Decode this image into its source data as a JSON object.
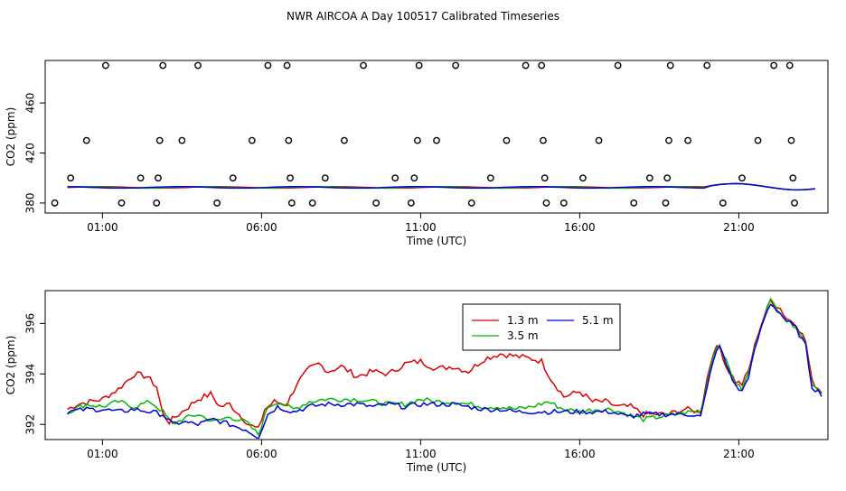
{
  "title": "NWR AIRCOA A  Day 100517  Calibrated Timeseries",
  "chart_data": [
    {
      "type": "scatter",
      "id": "top",
      "xlabel": "Time (UTC)",
      "ylabel": "CO2 (ppm)",
      "xlim": [
        -0.8,
        23.8
      ],
      "ylim": [
        372,
        494
      ],
      "xticks": [
        1,
        6,
        11,
        16,
        21
      ],
      "xtick_labels": [
        "01:00",
        "06:00",
        "11:00",
        "16:00",
        "21:00"
      ],
      "yticks": [
        380,
        420,
        460
      ],
      "ytick_labels": [
        "380",
        "420",
        "460"
      ],
      "markers": [
        [
          -0.5,
          380
        ],
        [
          0,
          400
        ],
        [
          0.5,
          430
        ],
        [
          1.1,
          490
        ],
        [
          1.6,
          380
        ],
        [
          2.2,
          400
        ],
        [
          2.7,
          380
        ],
        [
          2.75,
          400
        ],
        [
          2.8,
          430
        ],
        [
          2.9,
          490
        ],
        [
          3.5,
          430
        ],
        [
          4.0,
          490
        ],
        [
          4.6,
          380
        ],
        [
          5.1,
          400
        ],
        [
          5.7,
          430
        ],
        [
          6.2,
          490
        ],
        [
          6.8,
          490
        ],
        [
          6.85,
          430
        ],
        [
          6.9,
          400
        ],
        [
          6.95,
          380
        ],
        [
          7.6,
          380
        ],
        [
          8.0,
          400
        ],
        [
          8.6,
          430
        ],
        [
          9.2,
          490
        ],
        [
          9.6,
          380
        ],
        [
          10.2,
          400
        ],
        [
          10.7,
          380
        ],
        [
          10.8,
          400
        ],
        [
          10.9,
          430
        ],
        [
          10.95,
          490
        ],
        [
          11.5,
          430
        ],
        [
          12.1,
          490
        ],
        [
          12.6,
          380
        ],
        [
          13.2,
          400
        ],
        [
          13.7,
          430
        ],
        [
          14.3,
          490
        ],
        [
          14.8,
          490
        ],
        [
          14.85,
          430
        ],
        [
          14.9,
          400
        ],
        [
          14.95,
          380
        ],
        [
          15.5,
          380
        ],
        [
          16.1,
          400
        ],
        [
          16.6,
          430
        ],
        [
          17.2,
          490
        ],
        [
          17.7,
          380
        ],
        [
          18.2,
          400
        ],
        [
          18.7,
          380
        ],
        [
          18.75,
          400
        ],
        [
          18.8,
          430
        ],
        [
          18.85,
          490
        ],
        [
          19.4,
          430
        ],
        [
          20.0,
          490
        ],
        [
          20.5,
          380
        ],
        [
          21.1,
          400
        ],
        [
          21.6,
          430
        ],
        [
          22.1,
          490
        ],
        [
          22.6,
          490
        ],
        [
          22.65,
          430
        ],
        [
          22.7,
          400
        ],
        [
          22.75,
          380
        ]
      ],
      "series": [
        {
          "name": "1.3 m",
          "color": "#dd0000"
        },
        {
          "name": "3.5 m",
          "color": "#00bb00"
        },
        {
          "name": "5.1 m",
          "color": "#0000dd"
        }
      ]
    },
    {
      "type": "line",
      "id": "bottom",
      "xlabel": "Time (UTC)",
      "ylabel": "CO2 (ppm)",
      "xlim": [
        -0.8,
        23.8
      ],
      "ylim": [
        391.4,
        397.3
      ],
      "xticks": [
        1,
        6,
        11,
        16,
        21
      ],
      "xtick_labels": [
        "01:00",
        "06:00",
        "11:00",
        "16:00",
        "21:00"
      ],
      "yticks": [
        392,
        394,
        396
      ],
      "ytick_labels": [
        "392",
        "394",
        "396"
      ],
      "x_start": -0.1,
      "x_step": 0.1,
      "series": [
        {
          "name": "1.3 m",
          "color": "#dd0000",
          "anchors": [
            [
              -0.1,
              392.6
            ],
            [
              0.2,
              392.8
            ],
            [
              0.6,
              392.9
            ],
            [
              1.0,
              393.0
            ],
            [
              1.5,
              393.4
            ],
            [
              2.0,
              394.0
            ],
            [
              2.4,
              393.9
            ],
            [
              2.7,
              393.5
            ],
            [
              2.9,
              392.4
            ],
            [
              3.1,
              392.1
            ],
            [
              3.5,
              392.5
            ],
            [
              4.0,
              393.0
            ],
            [
              4.4,
              393.2
            ],
            [
              4.7,
              392.7
            ],
            [
              5.0,
              392.8
            ],
            [
              5.3,
              392.4
            ],
            [
              5.6,
              392.0
            ],
            [
              5.9,
              391.8
            ],
            [
              6.1,
              392.6
            ],
            [
              6.4,
              392.9
            ],
            [
              6.8,
              392.8
            ],
            [
              7.1,
              393.6
            ],
            [
              7.5,
              394.2
            ],
            [
              7.8,
              394.4
            ],
            [
              8.1,
              394.1
            ],
            [
              8.5,
              394.3
            ],
            [
              9.0,
              393.9
            ],
            [
              9.5,
              394.1
            ],
            [
              10.0,
              394.0
            ],
            [
              10.5,
              394.4
            ],
            [
              11.0,
              394.5
            ],
            [
              11.5,
              394.2
            ],
            [
              12.0,
              394.3
            ],
            [
              12.5,
              394.1
            ],
            [
              13.0,
              394.6
            ],
            [
              13.5,
              394.8
            ],
            [
              14.0,
              394.7
            ],
            [
              14.5,
              394.6
            ],
            [
              14.8,
              394.5
            ],
            [
              15.1,
              393.8
            ],
            [
              15.5,
              393.1
            ],
            [
              16.0,
              393.3
            ],
            [
              16.4,
              392.9
            ],
            [
              16.8,
              392.9
            ],
            [
              17.2,
              392.7
            ],
            [
              17.6,
              392.7
            ],
            [
              18.0,
              392.4
            ],
            [
              18.4,
              392.4
            ],
            [
              18.8,
              392.4
            ],
            [
              19.3,
              392.6
            ],
            [
              19.8,
              392.5
            ],
            [
              20.0,
              393.8
            ],
            [
              20.2,
              394.9
            ],
            [
              20.4,
              395.1
            ],
            [
              20.6,
              394.3
            ],
            [
              20.9,
              393.7
            ],
            [
              21.1,
              393.6
            ],
            [
              21.3,
              394.1
            ],
            [
              21.6,
              395.6
            ],
            [
              21.8,
              396.3
            ],
            [
              22.0,
              396.9
            ],
            [
              22.3,
              396.6
            ],
            [
              22.5,
              396.2
            ],
            [
              22.8,
              396.0
            ],
            [
              23.1,
              395.3
            ],
            [
              23.3,
              393.7
            ],
            [
              23.6,
              393.3
            ]
          ],
          "noise": 0.12
        },
        {
          "name": "3.5 m",
          "color": "#00bb00",
          "anchors": [
            [
              -0.1,
              392.5
            ],
            [
              0.5,
              392.8
            ],
            [
              1.0,
              392.7
            ],
            [
              1.5,
              392.9
            ],
            [
              2.0,
              392.7
            ],
            [
              2.5,
              392.9
            ],
            [
              2.9,
              392.5
            ],
            [
              3.2,
              392.0
            ],
            [
              3.5,
              392.2
            ],
            [
              4.0,
              392.4
            ],
            [
              4.5,
              392.1
            ],
            [
              5.0,
              392.3
            ],
            [
              5.5,
              392.1
            ],
            [
              5.9,
              391.6
            ],
            [
              6.2,
              392.7
            ],
            [
              6.5,
              392.9
            ],
            [
              7.0,
              392.6
            ],
            [
              7.5,
              392.9
            ],
            [
              8.0,
              393.0
            ],
            [
              8.5,
              393.0
            ],
            [
              9.0,
              393.0
            ],
            [
              9.5,
              392.9
            ],
            [
              10.0,
              392.8
            ],
            [
              10.5,
              392.8
            ],
            [
              11.0,
              393.0
            ],
            [
              11.5,
              392.9
            ],
            [
              12.0,
              392.9
            ],
            [
              12.5,
              392.8
            ],
            [
              13.0,
              392.7
            ],
            [
              13.5,
              392.7
            ],
            [
              14.0,
              392.6
            ],
            [
              14.5,
              392.7
            ],
            [
              15.0,
              392.9
            ],
            [
              15.5,
              392.6
            ],
            [
              16.0,
              392.5
            ],
            [
              16.5,
              392.6
            ],
            [
              17.0,
              392.6
            ],
            [
              17.5,
              392.4
            ],
            [
              18.0,
              392.2
            ],
            [
              18.5,
              392.3
            ],
            [
              19.0,
              392.4
            ],
            [
              19.5,
              392.5
            ],
            [
              19.8,
              392.5
            ],
            [
              20.0,
              393.6
            ],
            [
              20.2,
              394.8
            ],
            [
              20.4,
              395.2
            ],
            [
              20.6,
              394.5
            ],
            [
              20.9,
              393.6
            ],
            [
              21.1,
              393.4
            ],
            [
              21.3,
              394.0
            ],
            [
              21.6,
              395.5
            ],
            [
              21.8,
              396.3
            ],
            [
              22.0,
              396.9
            ],
            [
              22.3,
              396.5
            ],
            [
              22.5,
              396.1
            ],
            [
              22.8,
              395.9
            ],
            [
              23.1,
              395.2
            ],
            [
              23.3,
              393.6
            ],
            [
              23.6,
              393.3
            ]
          ],
          "noise": 0.1
        },
        {
          "name": "5.1 m",
          "color": "#0000dd",
          "anchors": [
            [
              -0.1,
              392.5
            ],
            [
              0.5,
              392.6
            ],
            [
              1.0,
              392.6
            ],
            [
              1.5,
              392.5
            ],
            [
              2.0,
              392.6
            ],
            [
              2.5,
              392.5
            ],
            [
              2.9,
              392.4
            ],
            [
              3.2,
              392.0
            ],
            [
              3.5,
              392.1
            ],
            [
              4.0,
              392.0
            ],
            [
              4.5,
              392.2
            ],
            [
              5.0,
              392.0
            ],
            [
              5.5,
              391.8
            ],
            [
              5.9,
              391.5
            ],
            [
              6.2,
              392.4
            ],
            [
              6.5,
              392.7
            ],
            [
              7.0,
              392.5
            ],
            [
              7.5,
              392.7
            ],
            [
              8.0,
              392.8
            ],
            [
              8.5,
              392.8
            ],
            [
              9.0,
              392.8
            ],
            [
              9.5,
              392.7
            ],
            [
              10.0,
              392.8
            ],
            [
              10.5,
              392.7
            ],
            [
              11.0,
              392.8
            ],
            [
              11.5,
              392.8
            ],
            [
              12.0,
              392.8
            ],
            [
              12.5,
              392.7
            ],
            [
              13.0,
              392.6
            ],
            [
              13.5,
              392.6
            ],
            [
              14.0,
              392.5
            ],
            [
              14.5,
              392.5
            ],
            [
              15.0,
              392.5
            ],
            [
              15.5,
              392.5
            ],
            [
              16.0,
              392.5
            ],
            [
              16.5,
              392.5
            ],
            [
              17.0,
              392.5
            ],
            [
              17.5,
              392.3
            ],
            [
              18.0,
              392.4
            ],
            [
              18.5,
              392.4
            ],
            [
              19.0,
              392.4
            ],
            [
              19.5,
              392.4
            ],
            [
              19.8,
              392.3
            ],
            [
              20.0,
              393.4
            ],
            [
              20.2,
              394.6
            ],
            [
              20.4,
              395.1
            ],
            [
              20.6,
              394.4
            ],
            [
              20.9,
              393.5
            ],
            [
              21.1,
              393.3
            ],
            [
              21.3,
              393.9
            ],
            [
              21.6,
              395.4
            ],
            [
              21.8,
              396.2
            ],
            [
              22.0,
              396.8
            ],
            [
              22.3,
              396.4
            ],
            [
              22.5,
              396.1
            ],
            [
              22.8,
              395.8
            ],
            [
              23.1,
              395.1
            ],
            [
              23.3,
              393.5
            ],
            [
              23.6,
              393.2
            ]
          ],
          "noise": 0.1
        }
      ]
    }
  ]
}
